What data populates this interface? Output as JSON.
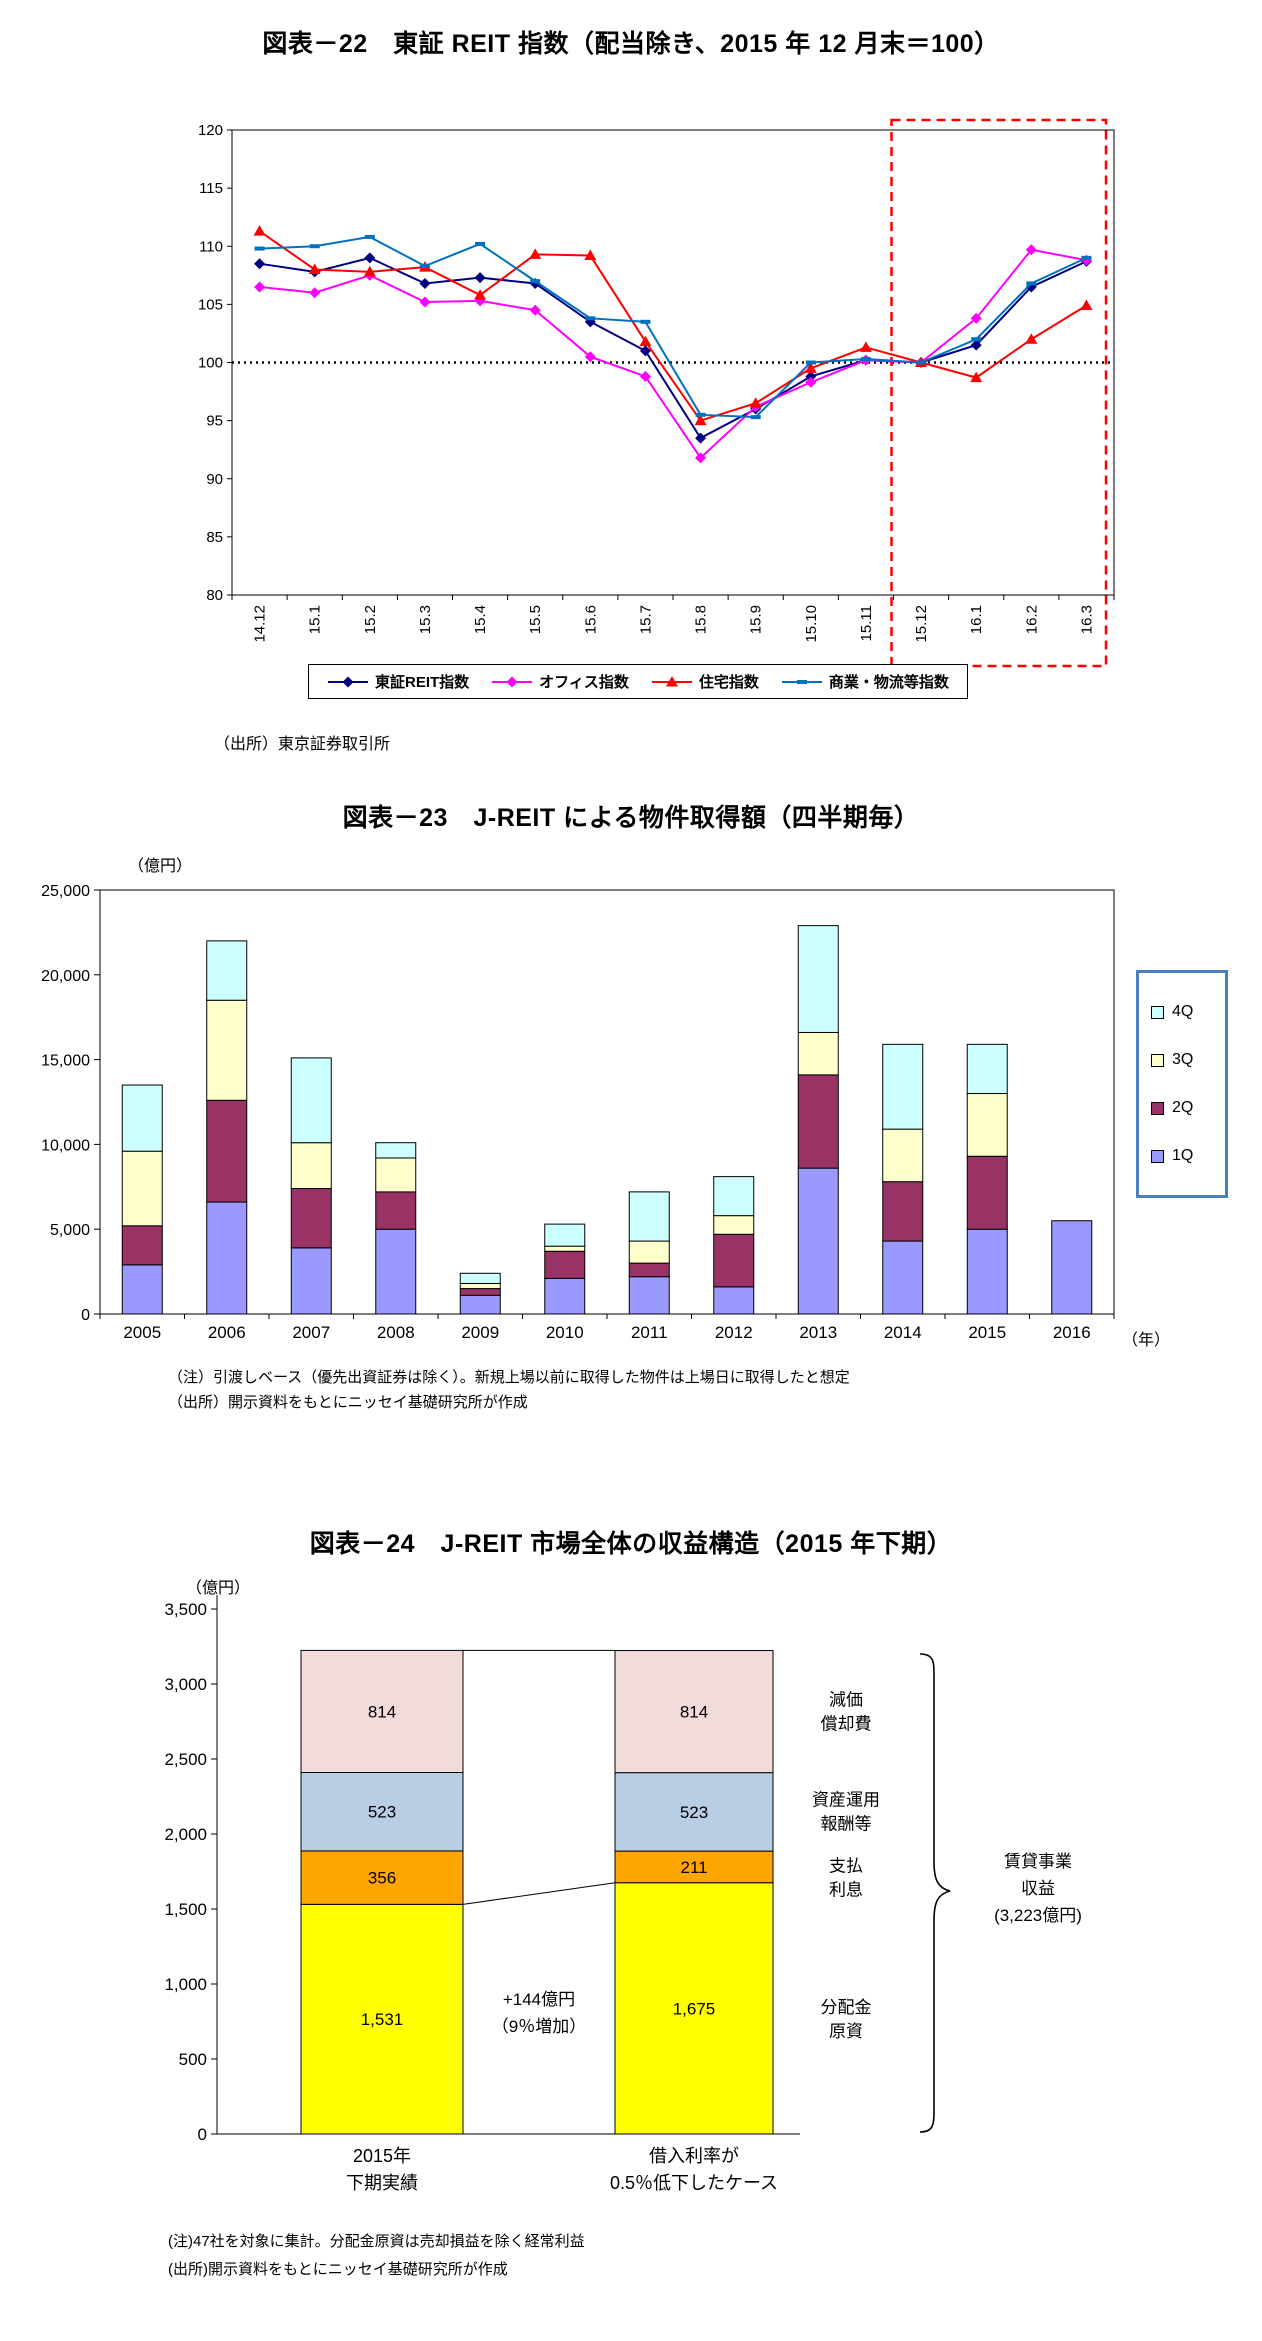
{
  "fig22": {
    "title": "図表－22　東証 REIT 指数（配当除き、2015 年 12 月末＝100）",
    "source": "（出所）東京証券取引所",
    "chart_data": {
      "type": "line",
      "categories": [
        "14.12",
        "15.1",
        "15.2",
        "15.3",
        "15.4",
        "15.5",
        "15.6",
        "15.7",
        "15.8",
        "15.9",
        "15.10",
        "15.11",
        "15.12",
        "16.1",
        "16.2",
        "16.3"
      ],
      "ylim": [
        80,
        120
      ],
      "ytick": 5,
      "baseline": 100,
      "highlight_range": [
        "15.12",
        "16.3"
      ],
      "highlight_color": "#FF0000",
      "legend_position": "bottom",
      "series": [
        {
          "name": "東証REIT指数",
          "color": "#000080",
          "marker": "diamond",
          "values": [
            108.5,
            107.8,
            109.0,
            106.8,
            107.3,
            106.8,
            103.5,
            101.0,
            93.5,
            96.0,
            98.8,
            100.2,
            100.0,
            101.5,
            106.5,
            108.7
          ]
        },
        {
          "name": "オフィス指数",
          "color": "#FF00FF",
          "marker": "diamond",
          "values": [
            106.5,
            106.0,
            107.5,
            105.2,
            105.3,
            104.5,
            100.5,
            98.8,
            91.8,
            96.2,
            98.3,
            100.2,
            100.0,
            103.8,
            109.7,
            108.8
          ]
        },
        {
          "name": "住宅指数",
          "color": "#FF0000",
          "marker": "triangle",
          "values": [
            111.3,
            108.0,
            107.8,
            108.2,
            105.8,
            109.3,
            109.2,
            101.8,
            95.0,
            96.5,
            99.5,
            101.3,
            100.0,
            98.7,
            102.0,
            104.9
          ]
        },
        {
          "name": "商業・物流等指数",
          "color": "#0070C0",
          "marker": "dash",
          "values": [
            109.8,
            110.0,
            110.8,
            108.3,
            110.2,
            107.0,
            103.8,
            103.5,
            95.5,
            95.3,
            100.0,
            100.3,
            100.0,
            102.0,
            106.8,
            109.0
          ]
        }
      ]
    }
  },
  "fig23": {
    "title": "図表－23　J-REIT による物件取得額（四半期毎）",
    "y_unit": "（億円）",
    "x_unit": "（年）",
    "note1": "（注）引渡しベース（優先出資証券は除く）。新規上場以前に取得した物件は上場日に取得したと想定",
    "note2": "（出所）開示資料をもとにニッセイ基礎研究所が作成",
    "chart_data": {
      "type": "bar",
      "stacked": true,
      "categories": [
        "2005",
        "2006",
        "2007",
        "2008",
        "2009",
        "2010",
        "2011",
        "2012",
        "2013",
        "2014",
        "2015",
        "2016"
      ],
      "ylim": [
        0,
        25000
      ],
      "ytick": 5000,
      "legend_order": [
        "4Q",
        "3Q",
        "2Q",
        "1Q"
      ],
      "legend_position": "right",
      "series": [
        {
          "name": "1Q",
          "color": "#9999FF",
          "values": [
            2900,
            6600,
            3900,
            5000,
            1100,
            2100,
            2200,
            1600,
            8600,
            4300,
            5000,
            5500
          ]
        },
        {
          "name": "2Q",
          "color": "#993366",
          "values": [
            2300,
            6000,
            3500,
            2200,
            400,
            1600,
            800,
            3100,
            5500,
            3500,
            4300,
            0
          ]
        },
        {
          "name": "3Q",
          "color": "#FFFFCC",
          "values": [
            4400,
            5900,
            2700,
            2000,
            300,
            300,
            1300,
            1100,
            2500,
            3100,
            3700,
            0
          ]
        },
        {
          "name": "4Q",
          "color": "#CCFFFF",
          "values": [
            3900,
            3500,
            5000,
            900,
            600,
            1300,
            2900,
            2300,
            6300,
            5000,
            2900,
            0
          ]
        }
      ]
    }
  },
  "fig24": {
    "title": "図表－24　J-REIT 市場全体の収益構造（2015 年下期）",
    "y_unit": "（億円）",
    "annotation_line1": "+144億円",
    "annotation_line2": "（9％増加）",
    "bracket_line1": "賃貸事業",
    "bracket_line2": "収益",
    "bracket_line3": "(3,223億円)",
    "note1": "(注)47社を対象に集計。分配金原資は売却損益を除く経常利益",
    "note2": "(出所)開示資料をもとにニッセイ基礎研究所が作成",
    "chart_data": {
      "type": "bar",
      "stacked": true,
      "categories": [
        [
          "2015年",
          "下期実績"
        ],
        [
          "借入利率が",
          "0.5％低下したケース"
        ]
      ],
      "ylim": [
        0,
        3500
      ],
      "ytick": 500,
      "series": [
        {
          "name": "分配金原資",
          "color": "#FFFF00",
          "values": [
            1531,
            1675
          ]
        },
        {
          "name": "支払利息",
          "color": "#FFA500",
          "values": [
            356,
            211
          ]
        },
        {
          "name": "資産運用報酬等",
          "color": "#B9CDE5",
          "values": [
            523,
            523
          ]
        },
        {
          "name": "減価償却費",
          "color": "#F2DCDB",
          "values": [
            814,
            814
          ]
        }
      ],
      "right_labels": [
        [
          "分配金",
          "原資"
        ],
        [
          "支払",
          "利息"
        ],
        [
          "資産運用",
          "報酬等"
        ],
        [
          "減価",
          "償却費"
        ]
      ],
      "totals_label": 3223
    }
  }
}
